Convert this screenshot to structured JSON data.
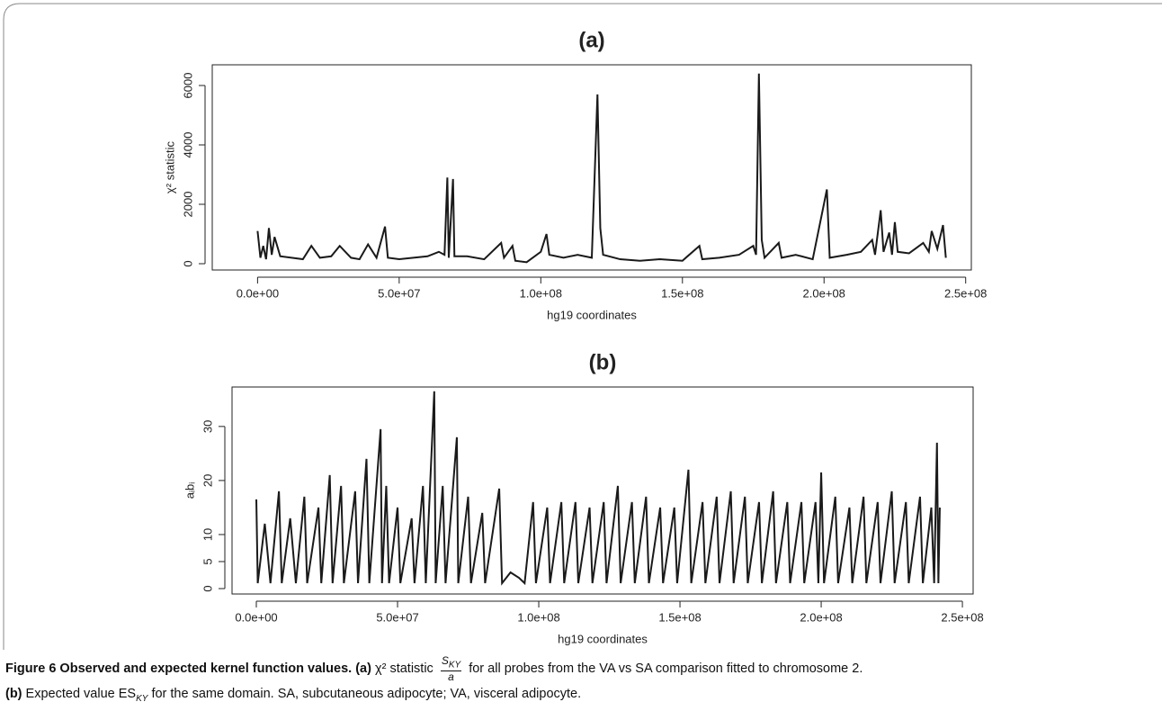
{
  "chart_data": [
    {
      "type": "line",
      "title": "(a)",
      "x_label": "hg19 coordinates",
      "y_label": "χ² statistic",
      "color": "#1a1a1a",
      "x": [
        0,
        1000000,
        2000000,
        3000000,
        4000000,
        5000000,
        6000000,
        8000000,
        12000000,
        16000000,
        19000000,
        22000000,
        26000000,
        29000000,
        33000000,
        36000000,
        39000000,
        42000000,
        45000000,
        46000000,
        50000000,
        55000000,
        60000000,
        64000000,
        66000000,
        67000000,
        67500000,
        69000000,
        69500000,
        74000000,
        80000000,
        86000000,
        87000000,
        90000000,
        91000000,
        95000000,
        100000000,
        102000000,
        103000000,
        108000000,
        113000000,
        118000000,
        120000000,
        121000000,
        122000000,
        128000000,
        135000000,
        142000000,
        150000000,
        156000000,
        157000000,
        163000000,
        170000000,
        175000000,
        176000000,
        177000000,
        178000000,
        179000000,
        184000000,
        185000000,
        190000000,
        196000000,
        201000000,
        202000000,
        208000000,
        213000000,
        217000000,
        218000000,
        220000000,
        221000000,
        223000000,
        224000000,
        225000000,
        226000000,
        230000000,
        235000000,
        237000000,
        238000000,
        240000000,
        242000000,
        243000000
      ],
      "values": [
        1100,
        200,
        600,
        150,
        1200,
        300,
        900,
        250,
        200,
        150,
        600,
        200,
        250,
        600,
        200,
        150,
        650,
        200,
        1250,
        200,
        150,
        200,
        250,
        400,
        300,
        2900,
        200,
        2850,
        250,
        250,
        150,
        700,
        200,
        600,
        100,
        50,
        400,
        1000,
        300,
        200,
        300,
        200,
        5700,
        1200,
        300,
        150,
        100,
        150,
        100,
        600,
        150,
        200,
        300,
        600,
        300,
        6400,
        800,
        200,
        700,
        200,
        300,
        150,
        2500,
        200,
        300,
        400,
        800,
        300,
        1800,
        400,
        1050,
        300,
        1400,
        400,
        350,
        700,
        400,
        1100,
        500,
        1300,
        200
      ],
      "xlim": [
        -16000000,
        252000000
      ],
      "xticks": [
        {
          "value": 0,
          "label": "0.0e+00"
        },
        {
          "value": 50000000,
          "label": "5.0e+07"
        },
        {
          "value": 100000000,
          "label": "1.0e+08"
        },
        {
          "value": 150000000,
          "label": "1.5e+08"
        },
        {
          "value": 200000000,
          "label": "2.0e+08"
        },
        {
          "value": 250000000,
          "label": "2.5e+08"
        }
      ],
      "ylim": [
        -212,
        6697
      ],
      "yticks": [
        0,
        2000,
        4000,
        6000
      ]
    },
    {
      "type": "line",
      "title": "(b)",
      "x_label": "hg19 coordinates",
      "y_label": "aᵢbᵢ",
      "color": "#1a1a1a",
      "x": [
        0,
        500000,
        3000000,
        5000000,
        8000000,
        9000000,
        12000000,
        14000000,
        17000000,
        18000000,
        22000000,
        23000000,
        26000000,
        27000000,
        30000000,
        31000000,
        35000000,
        36000000,
        39000000,
        40000000,
        44000000,
        44500000,
        46000000,
        47000000,
        50000000,
        51000000,
        55000000,
        56000000,
        59000000,
        60000000,
        63000000,
        63500000,
        66000000,
        67000000,
        71000000,
        71500000,
        75000000,
        76000000,
        80000000,
        81000000,
        86000000,
        87000000,
        90000000,
        93000000,
        95000000,
        98000000,
        99000000,
        103000000,
        104000000,
        108000000,
        109000000,
        113000000,
        114000000,
        118000000,
        119000000,
        123000000,
        124000000,
        128000000,
        129000000,
        133000000,
        134000000,
        138000000,
        139000000,
        143000000,
        144000000,
        148000000,
        149000000,
        153000000,
        154000000,
        158000000,
        159000000,
        163000000,
        164000000,
        168000000,
        169000000,
        173000000,
        174000000,
        178000000,
        179000000,
        183000000,
        184000000,
        188000000,
        189000000,
        193000000,
        194000000,
        198000000,
        199000000,
        200000000,
        201000000,
        205000000,
        206000000,
        210000000,
        211000000,
        215000000,
        216000000,
        220000000,
        221000000,
        225000000,
        226000000,
        230000000,
        231000000,
        235000000,
        236000000,
        239000000,
        240000000,
        241000000,
        241500000,
        242000000
      ],
      "values": [
        16.5,
        1,
        12,
        1,
        18,
        1,
        13,
        1,
        17,
        1,
        15,
        1,
        21,
        1,
        19,
        1,
        18,
        1,
        24,
        1,
        29.5,
        1,
        19,
        1,
        15,
        1,
        13,
        1,
        19,
        1,
        36.5,
        1,
        19,
        1,
        28,
        1,
        17,
        1,
        14,
        1,
        18.5,
        1,
        3,
        2,
        1,
        16,
        1,
        15,
        1,
        16,
        1,
        16,
        1,
        15,
        1,
        16,
        1,
        19,
        1,
        16,
        1,
        17,
        1,
        15,
        1,
        15,
        1,
        22,
        1,
        16,
        1,
        17,
        1,
        18,
        1,
        17,
        1,
        16,
        1,
        18,
        1,
        16,
        1,
        16,
        1,
        16,
        1,
        21.5,
        1,
        17,
        1,
        15,
        1,
        17,
        1,
        16,
        1,
        18,
        1,
        16,
        1,
        17,
        1,
        15,
        1,
        27,
        1,
        15
      ],
      "xlim": [
        -8600000,
        253800000
      ],
      "xticks": [
        {
          "value": 0,
          "label": "0.0e+00"
        },
        {
          "value": 50000000,
          "label": "5.0e+07"
        },
        {
          "value": 100000000,
          "label": "1.0e+08"
        },
        {
          "value": 150000000,
          "label": "1.5e+08"
        },
        {
          "value": 200000000,
          "label": "2.0e+08"
        },
        {
          "value": 250000000,
          "label": "2.5e+08"
        }
      ],
      "ylim": [
        -1,
        37.3
      ],
      "yticks": [
        0,
        5,
        10,
        20,
        30
      ]
    }
  ],
  "caption": {
    "figure": "Figure 6 Observed and expected kernel function values.",
    "a_tag": "(a)",
    "a_stat": "χ² statistic",
    "num": "S",
    "num_sub": "KY",
    "den": "a",
    "a_rest": "for all probes from the VA vs SA comparison fitted to chromosome 2.",
    "b_tag": "(b)",
    "b_text": "Expected value ES",
    "b_sub": "KY",
    "b_rest": "for the same domain. SA, subcutaneous adipocyte; VA, visceral adipocyte."
  }
}
